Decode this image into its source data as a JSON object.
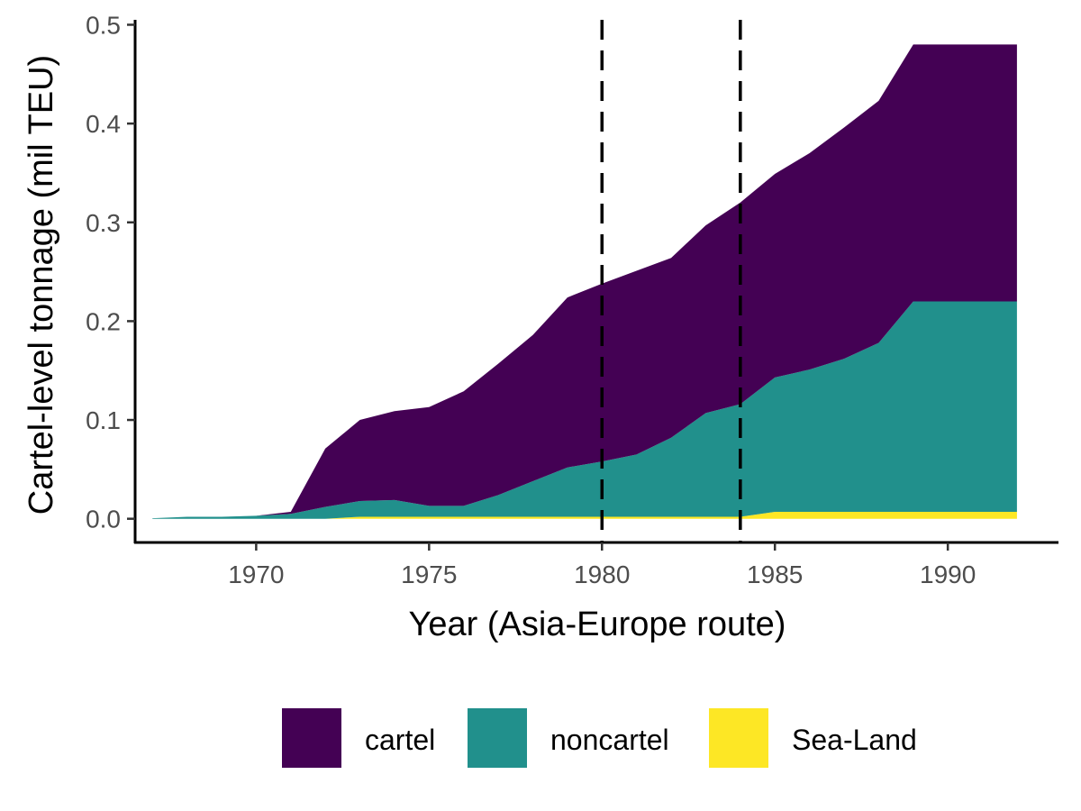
{
  "chart_data": {
    "type": "area",
    "stacked": true,
    "title": "",
    "xlabel": "Year (Asia-Europe route)",
    "ylabel": "Cartel-level tonnage (mil TEU)",
    "xlim": [
      1966.5,
      1993.2
    ],
    "ylim": [
      -0.024,
      0.505
    ],
    "x_ticks": [
      1970,
      1975,
      1980,
      1985,
      1990
    ],
    "y_ticks": [
      0.0,
      0.1,
      0.2,
      0.3,
      0.4,
      0.5
    ],
    "x_tick_labels": [
      "1970",
      "1975",
      "1980",
      "1985",
      "1990"
    ],
    "y_tick_labels": [
      "0.0",
      "0.1",
      "0.2",
      "0.3",
      "0.4",
      "0.5"
    ],
    "grid": false,
    "legend_position": "bottom",
    "reference_lines": [
      {
        "axis": "x",
        "value": 1980,
        "style": "dashed",
        "color": "#000000"
      },
      {
        "axis": "x",
        "value": 1984,
        "style": "dashed",
        "color": "#000000"
      }
    ],
    "x": [
      1967,
      1968,
      1969,
      1970,
      1971,
      1972,
      1973,
      1974,
      1975,
      1976,
      1977,
      1978,
      1979,
      1980,
      1981,
      1982,
      1983,
      1984,
      1985,
      1986,
      1987,
      1988,
      1989,
      1990,
      1991,
      1992
    ],
    "series": [
      {
        "name": "Sea-Land",
        "color": "#FDE725",
        "values": [
          0,
          0,
          0,
          0,
          0,
          0,
          0.002,
          0.002,
          0.002,
          0.002,
          0.002,
          0.002,
          0.002,
          0.002,
          0.002,
          0.002,
          0.002,
          0.002,
          0.007,
          0.007,
          0.007,
          0.007,
          0.007,
          0.007,
          0.007,
          0.007
        ]
      },
      {
        "name": "noncartel",
        "color": "#21908C",
        "values": [
          0.0005,
          0.002,
          0.002,
          0.003,
          0.005,
          0.012,
          0.016,
          0.017,
          0.011,
          0.011,
          0.022,
          0.036,
          0.05,
          0.056,
          0.063,
          0.08,
          0.105,
          0.114,
          0.136,
          0.144,
          0.155,
          0.171,
          0.213,
          0.213,
          0.213,
          0.213
        ]
      },
      {
        "name": "cartel",
        "color": "#440154",
        "values": [
          0,
          0,
          0,
          0,
          0.002,
          0.059,
          0.082,
          0.09,
          0.1,
          0.116,
          0.133,
          0.148,
          0.172,
          0.18,
          0.186,
          0.182,
          0.19,
          0.204,
          0.206,
          0.219,
          0.234,
          0.245,
          0.26,
          0.26,
          0.26,
          0.26
        ]
      }
    ]
  },
  "legend": {
    "items": [
      {
        "label": "cartel",
        "color": "#440154"
      },
      {
        "label": "noncartel",
        "color": "#21908C"
      },
      {
        "label": "Sea-Land",
        "color": "#FDE725"
      }
    ]
  }
}
